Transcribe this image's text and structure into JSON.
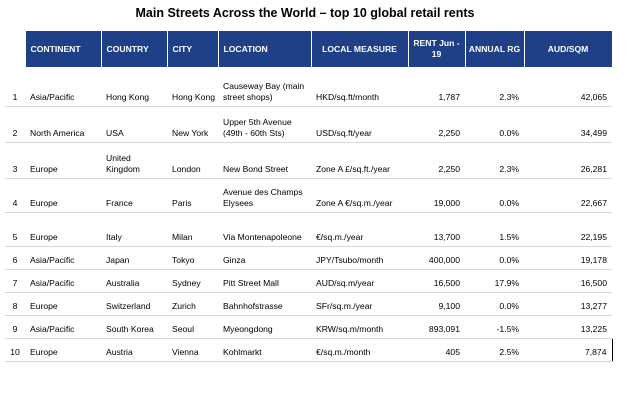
{
  "title": "Main Streets Across the World – top 10 global retail rents",
  "headers": {
    "continent": "CONTINENT",
    "country": "COUNTRY",
    "city": "CITY",
    "location": "LOCATION",
    "measure": "LOCAL MEASURE",
    "rent": "RENT Jun - 19",
    "annual": "ANNUAL RG",
    "aud": "AUD/SQM"
  },
  "rows": [
    {
      "rank": "1",
      "continent": "Asia/Pacific",
      "country": "Hong Kong",
      "city": "Hong Kong",
      "location": "Causeway Bay (main street shops)",
      "measure": "HKD/sq.ft/month",
      "rent": "1,787",
      "annual": "2.3%",
      "aud": "42,065"
    },
    {
      "rank": "2",
      "continent": "North America",
      "country": "USA",
      "city": "New York",
      "location": "Upper 5th Avenue (49th - 60th Sts)",
      "measure": "USD/sq.ft/year",
      "rent": "2,250",
      "annual": "0.0%",
      "aud": "34,499"
    },
    {
      "rank": "3",
      "continent": "Europe",
      "country": "United Kingdom",
      "city": "London",
      "location": "New Bond Street",
      "measure": "Zone A £/sq.ft./year",
      "rent": "2,250",
      "annual": "2.3%",
      "aud": "26,281"
    },
    {
      "rank": "4",
      "continent": "Europe",
      "country": "France",
      "city": "Paris",
      "location": "Avenue des Champs Elysees",
      "measure": "Zone A €/sq.m./year",
      "rent": "19,000",
      "annual": "0.0%",
      "aud": "22,667"
    },
    {
      "rank": "5",
      "continent": "Europe",
      "country": "Italy",
      "city": "Milan",
      "location": "Via Montenapoleone",
      "measure": "€/sq.m./year",
      "rent": "13,700",
      "annual": "1.5%",
      "aud": "22,195"
    },
    {
      "rank": "6",
      "continent": "Asia/Pacific",
      "country": "Japan",
      "city": "Tokyo",
      "location": "Ginza",
      "measure": "JPY/Tsubo/month",
      "rent": "400,000",
      "annual": "0.0%",
      "aud": "19,178"
    },
    {
      "rank": "7",
      "continent": "Asia/Pacific",
      "country": "Australia",
      "city": "Sydney",
      "location": "Pitt Street Mall",
      "measure": "AUD/sq.m/year",
      "rent": "16,500",
      "annual": "17.9%",
      "aud": "16,500"
    },
    {
      "rank": "8",
      "continent": "Europe",
      "country": "Switzerland",
      "city": "Zurich",
      "location": "Bahnhofstrasse",
      "measure": "SFr/sq.m./year",
      "rent": "9,100",
      "annual": "0.0%",
      "aud": "13,277"
    },
    {
      "rank": "9",
      "continent": "Asia/Pacific",
      "country": "South Korea",
      "city": "Seoul",
      "location": "Myeongdong",
      "measure": "KRW/sq.m/month",
      "rent": "893,091",
      "annual": "-1.5%",
      "aud": "13,225"
    },
    {
      "rank": "10",
      "continent": "Europe",
      "country": "Austria",
      "city": "Vienna",
      "location": "Kohlmarkt",
      "measure": "€/sq.m./month",
      "rent": "405",
      "annual": "2.5%",
      "aud": "7,874"
    }
  ]
}
